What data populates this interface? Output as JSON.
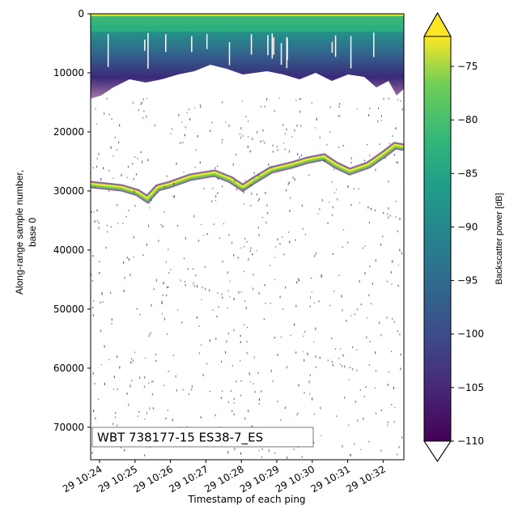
{
  "chart_data": {
    "type": "heatmap",
    "xlabel": "Timestamp of each ping",
    "ylabel": [
      "Along-range sample number,",
      "base 0"
    ],
    "annotation": "WBT 738177-15 ES38-7_ES",
    "xticks": [
      "29 10:24",
      "29 10:25",
      "29 10:26",
      "29 10:27",
      "29 10:28",
      "29 10:29",
      "29 10:30",
      "29 10:31",
      "29 10:32"
    ],
    "ylim": [
      75500,
      0
    ],
    "yticks": [
      0,
      10000,
      20000,
      30000,
      40000,
      50000,
      60000,
      70000
    ],
    "colorbar": {
      "label": "Backscatter power [dB]",
      "cmap": "viridis",
      "extend": "both",
      "lim": [
        -110,
        -72.2
      ],
      "ticks": [
        {
          "value": -75,
          "label": "−75"
        },
        {
          "value": -80,
          "label": "−80"
        },
        {
          "value": -85,
          "label": "−85"
        },
        {
          "value": -90,
          "label": "−90"
        },
        {
          "value": -95,
          "label": "−95"
        },
        {
          "value": -100,
          "label": "−100"
        },
        {
          "value": -105,
          "label": "−105"
        },
        {
          "value": -110,
          "label": "−110"
        }
      ]
    }
  }
}
